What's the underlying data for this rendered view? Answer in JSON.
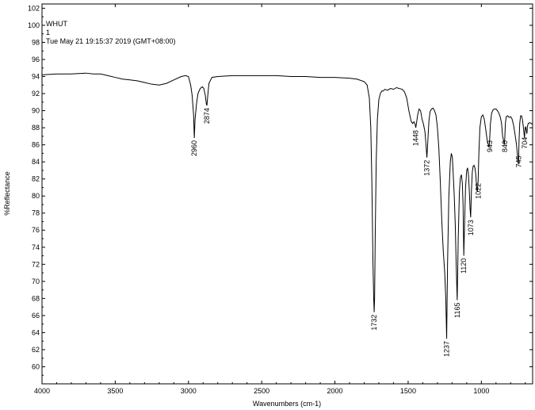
{
  "chart_data": {
    "type": "line",
    "header_lines": [
      "WHUT",
      "1",
      "Tue May 21 19:15:37 2019 (GMT+08:00)"
    ],
    "xlabel": "Wavenumbers (cm-1)",
    "ylabel": "%Reflectance",
    "xlim": [
      4000,
      650
    ],
    "ylim": [
      58,
      102.5
    ],
    "x_ticks": [
      4000,
      3500,
      3000,
      2500,
      2000,
      1500,
      1000
    ],
    "y_ticks": [
      60,
      62,
      64,
      66,
      68,
      70,
      72,
      74,
      76,
      78,
      80,
      82,
      84,
      86,
      88,
      90,
      92,
      94,
      96,
      98,
      100,
      102
    ],
    "grid": false,
    "peak_labels": [
      "2960",
      "2874",
      "1732",
      "1448",
      "1372",
      "1237",
      "1165",
      "1120",
      "1073",
      "1022",
      "943",
      "840",
      "745",
      "704"
    ],
    "series": [
      {
        "x": [
          4000,
          3900,
          3800,
          3700,
          3650,
          3600,
          3550,
          3500,
          3450,
          3400,
          3350,
          3300,
          3250,
          3200,
          3150,
          3100,
          3050,
          3020,
          3000,
          2985,
          2975,
          2965,
          2960,
          2955,
          2945,
          2935,
          2920,
          2905,
          2895,
          2885,
          2878,
          2874,
          2868,
          2860,
          2840,
          2800,
          2700,
          2600,
          2500,
          2400,
          2300,
          2200,
          2100,
          2000,
          1900,
          1850,
          1800,
          1780,
          1765,
          1755,
          1748,
          1740,
          1735,
          1732,
          1729,
          1725,
          1718,
          1710,
          1700,
          1690,
          1680,
          1670,
          1660,
          1640,
          1620,
          1600,
          1580,
          1560,
          1540,
          1525,
          1510,
          1495,
          1480,
          1470,
          1460,
          1452,
          1448,
          1444,
          1435,
          1425,
          1415,
          1405,
          1395,
          1385,
          1378,
          1372,
          1366,
          1358,
          1350,
          1340,
          1330,
          1320,
          1310,
          1300,
          1290,
          1280,
          1270,
          1260,
          1250,
          1243,
          1237,
          1231,
          1222,
          1212,
          1205,
          1198,
          1192,
          1185,
          1178,
          1172,
          1165,
          1158,
          1150,
          1143,
          1136,
          1130,
          1125,
          1120,
          1115,
          1108,
          1100,
          1094,
          1088,
          1082,
          1077,
          1073,
          1068,
          1062,
          1056,
          1050,
          1044,
          1038,
          1032,
          1027,
          1022,
          1017,
          1010,
          1000,
          990,
          980,
          970,
          960,
          952,
          947,
          943,
          938,
          930,
          920,
          910,
          900,
          890,
          880,
          870,
          862,
          855,
          848,
          843,
          840,
          836,
          830,
          820,
          810,
          800,
          790,
          780,
          770,
          760,
          752,
          747,
          745,
          742,
          738,
          732,
          726,
          720,
          714,
          709,
          706,
          704,
          701,
          698,
          695,
          692,
          690,
          688,
          686,
          680,
          670,
          660,
          650
        ],
        "y": [
          94.2,
          94.3,
          94.3,
          94.4,
          94.3,
          94.3,
          94.1,
          93.9,
          93.7,
          93.6,
          93.5,
          93.3,
          93.1,
          93.0,
          93.2,
          93.6,
          94.0,
          94.1,
          94.0,
          93.0,
          91.8,
          89.5,
          86.8,
          89.0,
          90.8,
          92.0,
          92.6,
          92.8,
          92.6,
          91.8,
          90.8,
          90.6,
          91.8,
          93.2,
          93.9,
          94.0,
          94.1,
          94.1,
          94.1,
          94.1,
          94.0,
          94.0,
          93.9,
          93.9,
          93.8,
          93.7,
          93.4,
          93.0,
          91.5,
          88.0,
          82.0,
          72.0,
          68.0,
          66.4,
          68.0,
          75.0,
          84.0,
          89.0,
          91.3,
          92.0,
          92.3,
          92.3,
          92.5,
          92.4,
          92.6,
          92.5,
          92.7,
          92.6,
          92.5,
          92.2,
          91.5,
          90.0,
          88.8,
          88.5,
          88.7,
          88.4,
          88.0,
          88.4,
          89.5,
          90.2,
          90.0,
          89.0,
          88.4,
          87.5,
          86.0,
          84.5,
          86.3,
          88.8,
          89.9,
          90.2,
          90.3,
          90.0,
          89.5,
          88.0,
          85.5,
          81.5,
          77.0,
          73.5,
          71.0,
          68.0,
          63.3,
          72.0,
          80.0,
          84.0,
          85.0,
          84.5,
          82.5,
          80.0,
          76.5,
          72.0,
          67.8,
          75.0,
          80.5,
          82.2,
          82.5,
          81.5,
          79.0,
          73.0,
          76.5,
          81.0,
          83.0,
          83.3,
          82.5,
          80.5,
          78.5,
          77.5,
          80.5,
          82.8,
          83.5,
          83.6,
          83.3,
          82.5,
          81.0,
          80.5,
          81.8,
          85.0,
          88.0,
          89.3,
          89.5,
          89.0,
          87.8,
          86.5,
          86.0,
          85.7,
          86.8,
          88.5,
          89.7,
          90.1,
          90.2,
          90.2,
          90.0,
          89.7,
          89.2,
          88.5,
          87.0,
          86.5,
          86.0,
          86.8,
          88.5,
          89.3,
          89.4,
          89.2,
          89.3,
          89.0,
          88.3,
          87.2,
          86.0,
          84.5,
          83.7,
          85.0,
          86.8,
          88.5,
          89.4,
          89.4,
          89.0,
          88.2,
          87.4,
          86.8,
          87.2,
          88.0,
          88.1,
          87.9,
          87.6,
          87.3,
          87.5,
          88.1,
          88.5,
          88.6,
          88.5,
          88.4
        ]
      }
    ]
  }
}
